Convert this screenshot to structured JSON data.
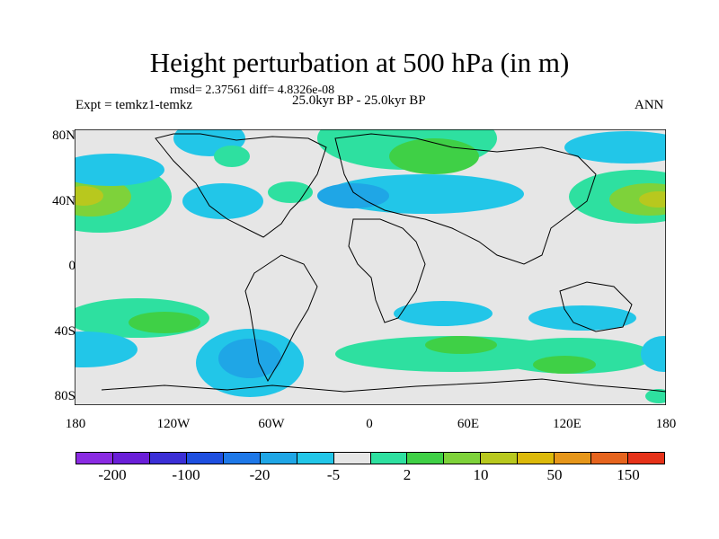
{
  "title": "Height perturbation at 500 hPa (in m)",
  "stats": "rmsd= 2.37561 diff= 4.8326e-08",
  "expt": "Expt = temkz1-temkz",
  "period": "25.0kyr BP - 25.0kyr BP",
  "season": "ANN",
  "lat_ticks": [
    "80N",
    "40N",
    "0",
    "40S",
    "80S"
  ],
  "lon_ticks": [
    "180",
    "120W",
    "60W",
    "0",
    "60E",
    "120E",
    "180"
  ],
  "colorbar": {
    "colors": [
      "#8a2be2",
      "#6a1fd8",
      "#3b2fd6",
      "#1e4fe0",
      "#1e78e8",
      "#1fa6e6",
      "#22c6e8",
      "#e6e6e6",
      "#2ee0a0",
      "#3fd046",
      "#7ed23a",
      "#b8c81e",
      "#dcb90a",
      "#e6961a",
      "#e6641e",
      "#e63219"
    ],
    "labels": [
      "-200",
      "-100",
      "-20",
      "-5",
      "2",
      "10",
      "50",
      "150"
    ]
  }
}
